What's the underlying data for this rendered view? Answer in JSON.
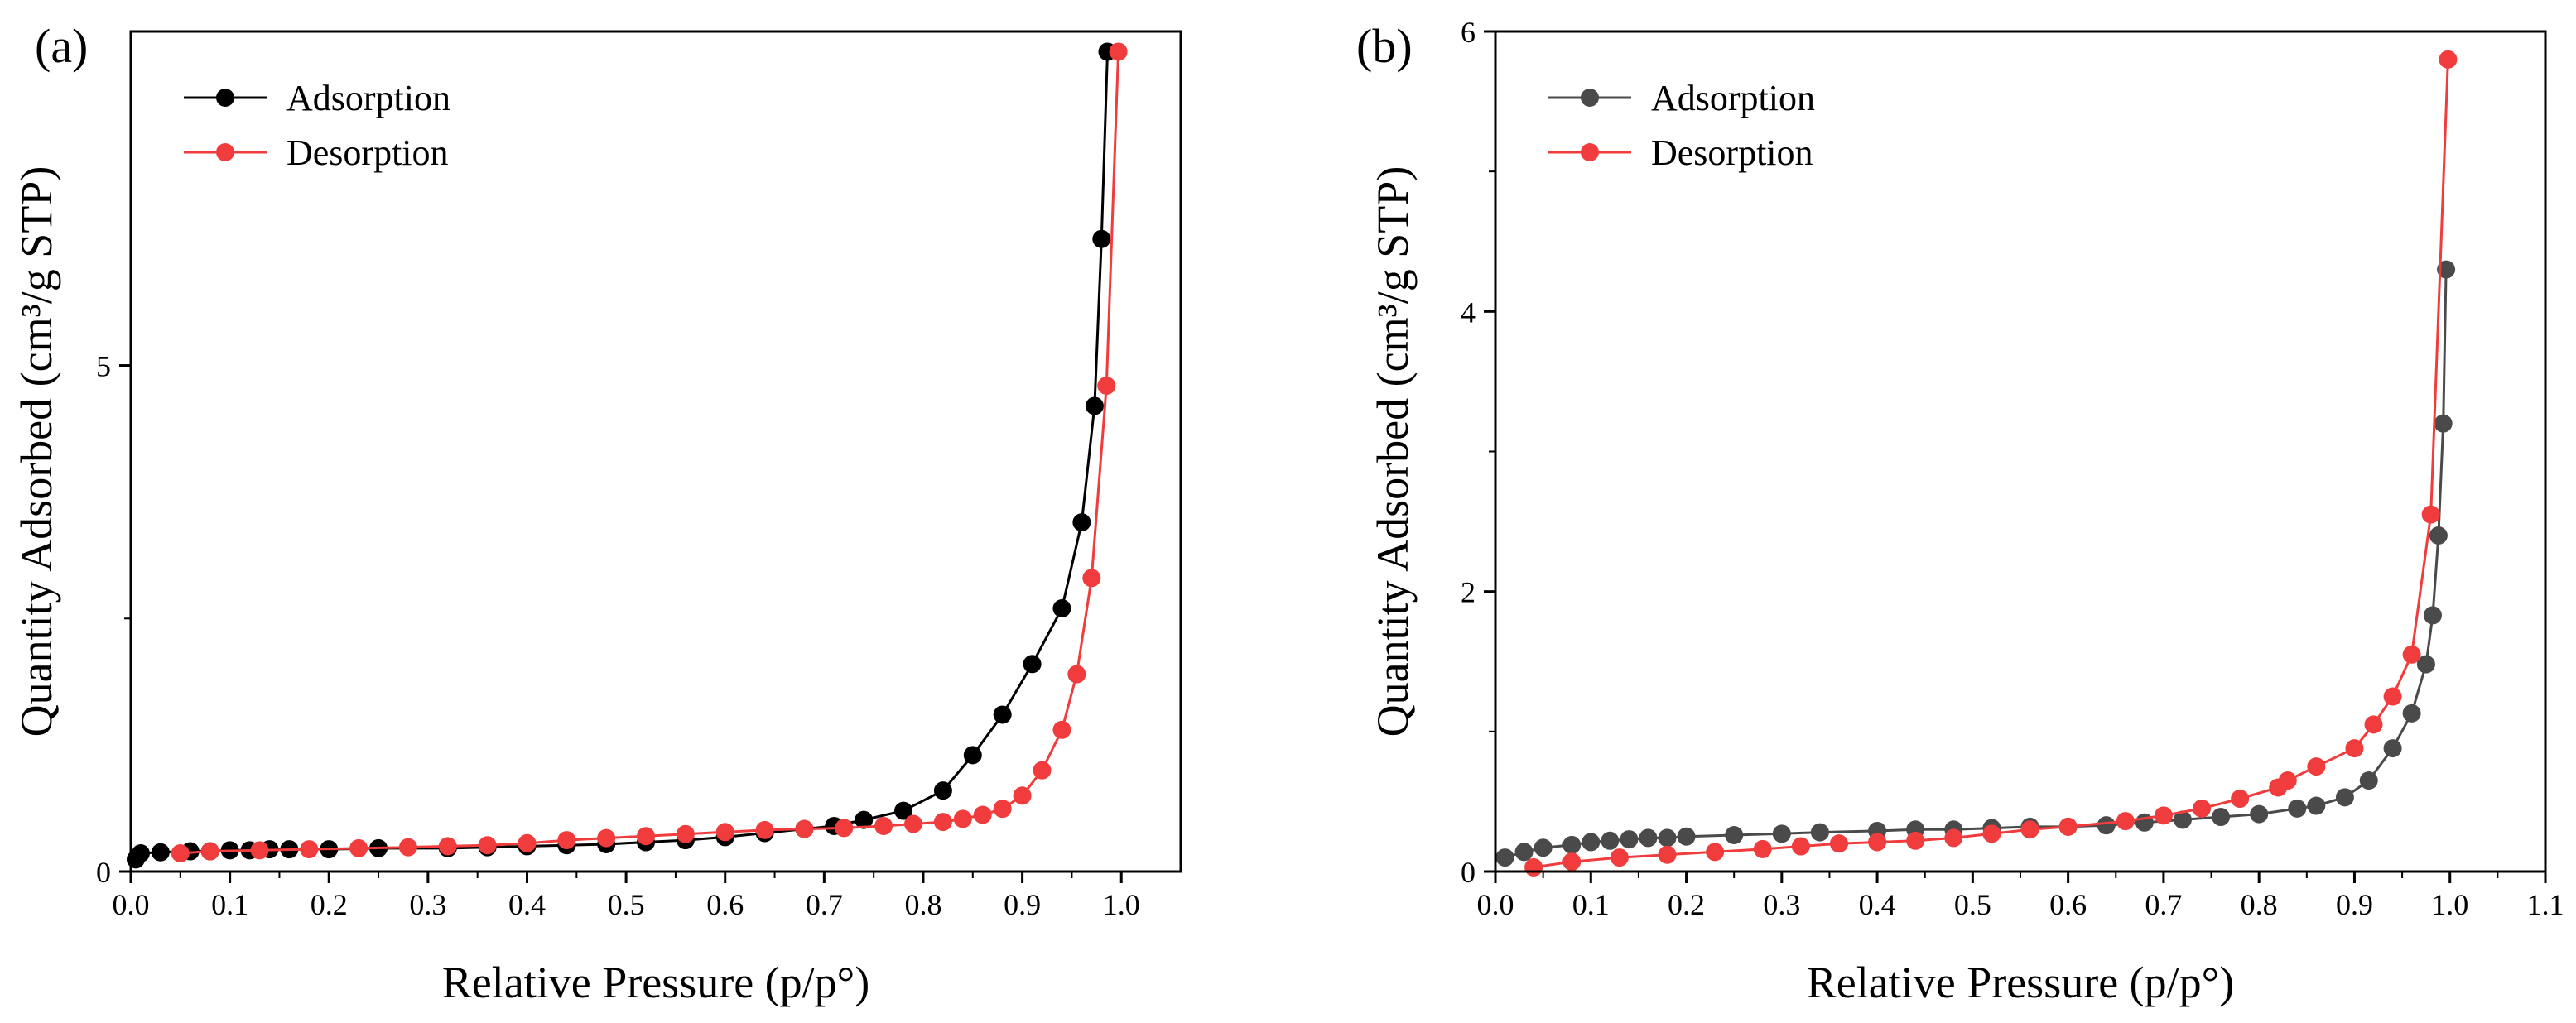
{
  "chart_data": [
    {
      "panel_label": "(a)",
      "type": "line",
      "xlabel": "Relative Pressure (p/p°)",
      "ylabel": "Quantity Adsorbed (cm³/g STP)",
      "xlim": [
        0.0,
        1.06
      ],
      "ylim": [
        0,
        8.3
      ],
      "xticks": [
        0.0,
        0.1,
        0.2,
        0.3,
        0.4,
        0.5,
        0.6,
        0.7,
        0.8,
        0.9,
        1.0
      ],
      "xtick_labels": [
        "0.0",
        "0.1",
        "0.2",
        "0.3",
        "0.4",
        "0.5",
        "0.6",
        "0.7",
        "0.8",
        "0.9",
        "1.0"
      ],
      "yticks": [
        0,
        5
      ],
      "ytick_labels": [
        "0",
        "5"
      ],
      "legend_position": "top-left",
      "series": [
        {
          "name": "Adsorption",
          "color": "#000000",
          "marker": "circle",
          "x": [
            0.005,
            0.01,
            0.03,
            0.06,
            0.08,
            0.1,
            0.12,
            0.14,
            0.16,
            0.2,
            0.25,
            0.32,
            0.36,
            0.4,
            0.44,
            0.48,
            0.52,
            0.56,
            0.6,
            0.64,
            0.68,
            0.71,
            0.74,
            0.78,
            0.82,
            0.85,
            0.88,
            0.91,
            0.94,
            0.96,
            0.973,
            0.98,
            0.986
          ],
          "y": [
            0.12,
            0.18,
            0.19,
            0.2,
            0.2,
            0.21,
            0.21,
            0.22,
            0.22,
            0.22,
            0.23,
            0.23,
            0.24,
            0.25,
            0.26,
            0.27,
            0.29,
            0.31,
            0.34,
            0.38,
            0.42,
            0.45,
            0.51,
            0.6,
            0.8,
            1.15,
            1.55,
            2.05,
            2.6,
            3.45,
            4.6,
            6.25,
            8.1
          ]
        },
        {
          "name": "Desorption",
          "color": "#f03c3c",
          "marker": "circle",
          "x": [
            0.997,
            0.985,
            0.97,
            0.955,
            0.94,
            0.92,
            0.9,
            0.88,
            0.86,
            0.84,
            0.82,
            0.79,
            0.76,
            0.72,
            0.68,
            0.64,
            0.6,
            0.56,
            0.52,
            0.48,
            0.44,
            0.4,
            0.36,
            0.32,
            0.28,
            0.23,
            0.18,
            0.13,
            0.08,
            0.05
          ],
          "y": [
            8.1,
            4.8,
            2.9,
            1.95,
            1.4,
            1.0,
            0.75,
            0.62,
            0.56,
            0.52,
            0.49,
            0.47,
            0.45,
            0.43,
            0.42,
            0.41,
            0.39,
            0.37,
            0.35,
            0.33,
            0.31,
            0.28,
            0.26,
            0.25,
            0.24,
            0.23,
            0.22,
            0.21,
            0.2,
            0.18
          ]
        }
      ]
    },
    {
      "panel_label": "(b)",
      "type": "line",
      "xlabel": "Relative Pressure (p/p°)",
      "ylabel": "Quantity Adsorbed (cm³/g STP)",
      "xlim": [
        0.0,
        1.1
      ],
      "ylim": [
        0,
        6
      ],
      "xticks": [
        0.0,
        0.1,
        0.2,
        0.3,
        0.4,
        0.5,
        0.6,
        0.7,
        0.8,
        0.9,
        1.0,
        1.1
      ],
      "xtick_labels": [
        "0.0",
        "0.1",
        "0.2",
        "0.3",
        "0.4",
        "0.5",
        "0.6",
        "0.7",
        "0.8",
        "0.9",
        "1.0",
        "1.1"
      ],
      "yticks": [
        0,
        2,
        4,
        6
      ],
      "ytick_labels": [
        "0",
        "2",
        "4",
        "6"
      ],
      "legend_position": "top-left",
      "series": [
        {
          "name": "Adsorption",
          "color": "#4a4a4a",
          "marker": "circle",
          "x": [
            0.01,
            0.03,
            0.05,
            0.08,
            0.1,
            0.12,
            0.14,
            0.16,
            0.18,
            0.2,
            0.25,
            0.3,
            0.34,
            0.4,
            0.44,
            0.48,
            0.52,
            0.56,
            0.6,
            0.64,
            0.68,
            0.72,
            0.76,
            0.8,
            0.84,
            0.86,
            0.89,
            0.915,
            0.94,
            0.96,
            0.975,
            0.982,
            0.988,
            0.993,
            0.996
          ],
          "y": [
            0.1,
            0.14,
            0.17,
            0.19,
            0.21,
            0.22,
            0.23,
            0.24,
            0.24,
            0.25,
            0.26,
            0.27,
            0.28,
            0.29,
            0.3,
            0.3,
            0.31,
            0.32,
            0.32,
            0.33,
            0.35,
            0.37,
            0.39,
            0.41,
            0.45,
            0.47,
            0.53,
            0.65,
            0.88,
            1.13,
            1.48,
            1.83,
            2.4,
            3.2,
            4.3
          ]
        },
        {
          "name": "Desorption",
          "color": "#f03c3c",
          "marker": "circle",
          "x": [
            0.998,
            0.98,
            0.96,
            0.94,
            0.92,
            0.9,
            0.86,
            0.83,
            0.82,
            0.78,
            0.74,
            0.7,
            0.66,
            0.6,
            0.56,
            0.52,
            0.48,
            0.44,
            0.4,
            0.36,
            0.32,
            0.28,
            0.23,
            0.18,
            0.13,
            0.08,
            0.04
          ],
          "y": [
            5.8,
            2.55,
            1.55,
            1.25,
            1.05,
            0.88,
            0.75,
            0.65,
            0.6,
            0.52,
            0.45,
            0.4,
            0.36,
            0.32,
            0.3,
            0.27,
            0.24,
            0.22,
            0.21,
            0.2,
            0.18,
            0.16,
            0.14,
            0.12,
            0.1,
            0.07,
            0.03
          ]
        }
      ]
    }
  ]
}
